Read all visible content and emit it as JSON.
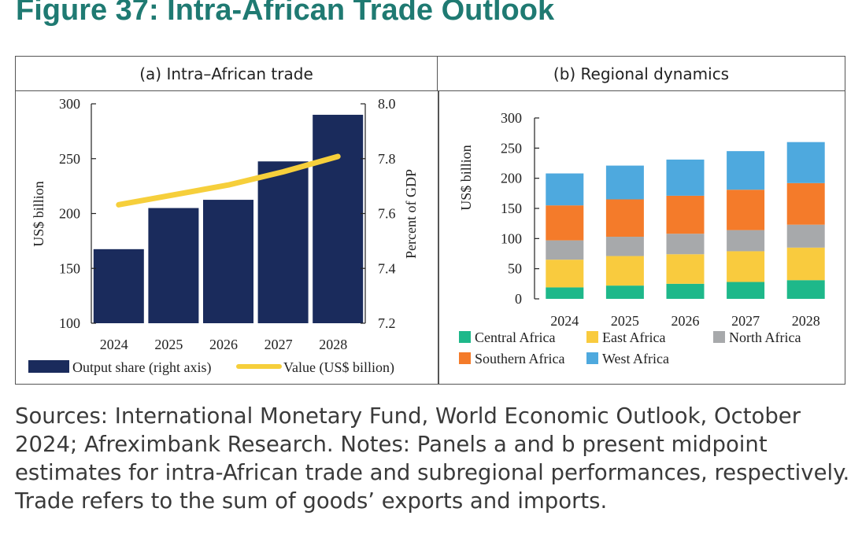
{
  "figure_title": "Figure 37: Intra-African Trade Outlook",
  "notes": "Sources: International Monetary Fund, World Economic Outlook, October 2024; Afreximbank Research. Notes: Panels a and b present midpoint estimates for intra-African trade and subregional performances, respectively. Trade refers to the sum of goods’ exports and imports.",
  "colors": {
    "title": "#1f7a72",
    "bar_navy": "#1a2b5c",
    "line_yellow": "#f6cf3b",
    "central_africa": "#1eb88a",
    "east_africa": "#f9cb3e",
    "north_africa": "#a7a9ab",
    "southern_africa": "#f47b2a",
    "west_africa": "#4ea9de"
  },
  "chart_data": [
    {
      "type": "bar",
      "panel_title": "(a) Intra–African trade",
      "categories": [
        "2024",
        "2025",
        "2026",
        "2027",
        "2028"
      ],
      "ylabel": "US$ billion",
      "ylim": [
        100,
        300
      ],
      "yticks": [
        "300",
        "250",
        "200",
        "150",
        "100"
      ],
      "y2label": "Percent of GDP",
      "y2lim": [
        7.2,
        8.0
      ],
      "y2ticks": [
        "8.0",
        "7.8",
        "7.6",
        "7.4",
        "7.2"
      ],
      "series": [
        {
          "name": "Output share (right axis)",
          "type": "bar",
          "axis": "right",
          "values": [
            7.47,
            7.62,
            7.65,
            7.79,
            7.96
          ]
        },
        {
          "name": "Value (US$ billion)",
          "type": "line",
          "axis": "left",
          "values": [
            208,
            217,
            226,
            238,
            252
          ]
        }
      ],
      "grid": false,
      "legend": "bottom"
    },
    {
      "type": "bar",
      "stacked": true,
      "panel_title": "(b) Regional dynamics",
      "categories": [
        "2024",
        "2025",
        "2026",
        "2027",
        "2028"
      ],
      "ylabel": "US$ billion",
      "ylim": [
        0,
        300
      ],
      "yticks": [
        "300",
        "250",
        "200",
        "150",
        "100",
        "50",
        "0"
      ],
      "series": [
        {
          "name": "Central Africa",
          "values": [
            19,
            22,
            25,
            28,
            31
          ]
        },
        {
          "name": "East Africa",
          "values": [
            46,
            49,
            49,
            51,
            54
          ]
        },
        {
          "name": "North Africa",
          "values": [
            32,
            32,
            34,
            35,
            38
          ]
        },
        {
          "name": "Southern Africa",
          "values": [
            58,
            62,
            63,
            67,
            69
          ]
        },
        {
          "name": "West Africa",
          "values": [
            53,
            56,
            60,
            64,
            68
          ]
        }
      ],
      "grid": false,
      "legend": "bottom"
    }
  ]
}
